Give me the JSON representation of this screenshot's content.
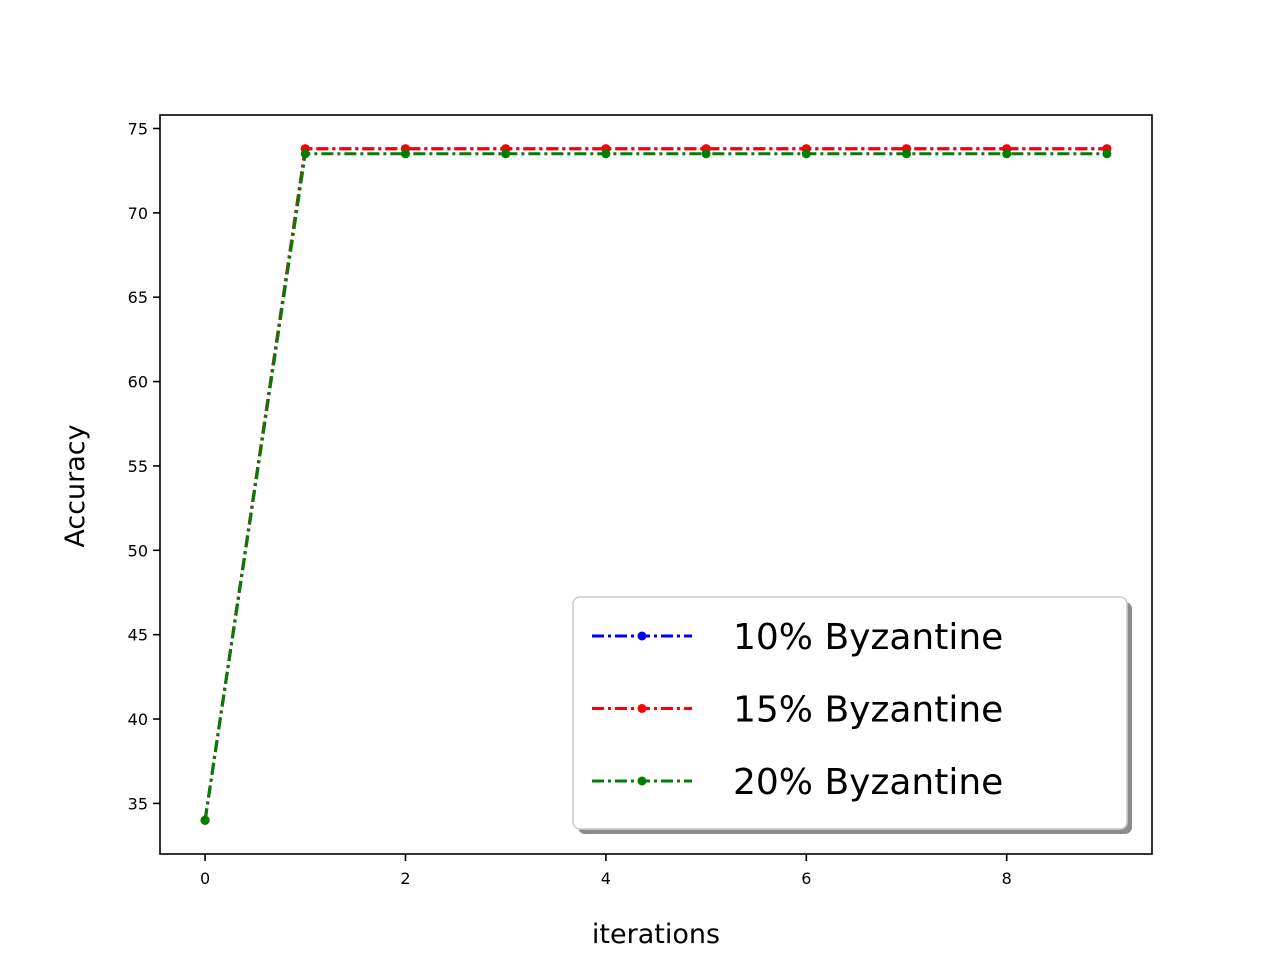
{
  "chart_data": {
    "type": "line",
    "xlabel": "iterations",
    "ylabel": "Accuracy",
    "xlim": [
      -0.45,
      9.45
    ],
    "ylim": [
      32,
      75.8
    ],
    "xticks": [
      0,
      2,
      4,
      6,
      8
    ],
    "yticks": [
      35,
      40,
      45,
      50,
      55,
      60,
      65,
      70,
      75
    ],
    "x": [
      0,
      1,
      2,
      3,
      4,
      5,
      6,
      7,
      8,
      9
    ],
    "series": [
      {
        "name": "10% Byzantine",
        "color": "#0000ff",
        "linestyle": "dash-dot",
        "marker": "dot",
        "values": [
          34.0,
          73.8,
          73.8,
          73.8,
          73.8,
          73.8,
          73.8,
          73.8,
          73.8,
          73.8
        ]
      },
      {
        "name": "15% Byzantine",
        "color": "#ff0000",
        "linestyle": "dash-dot",
        "marker": "dot",
        "values": [
          34.0,
          73.8,
          73.8,
          73.8,
          73.8,
          73.8,
          73.8,
          73.8,
          73.8,
          73.8
        ]
      },
      {
        "name": "20% Byzantine",
        "color": "#008000",
        "linestyle": "dash-dot",
        "marker": "dot",
        "values": [
          34.0,
          73.5,
          73.5,
          73.5,
          73.5,
          73.5,
          73.5,
          73.5,
          73.5,
          73.5
        ]
      }
    ],
    "legend": {
      "placement": "lower-right",
      "shadow": true
    },
    "grid": false
  }
}
